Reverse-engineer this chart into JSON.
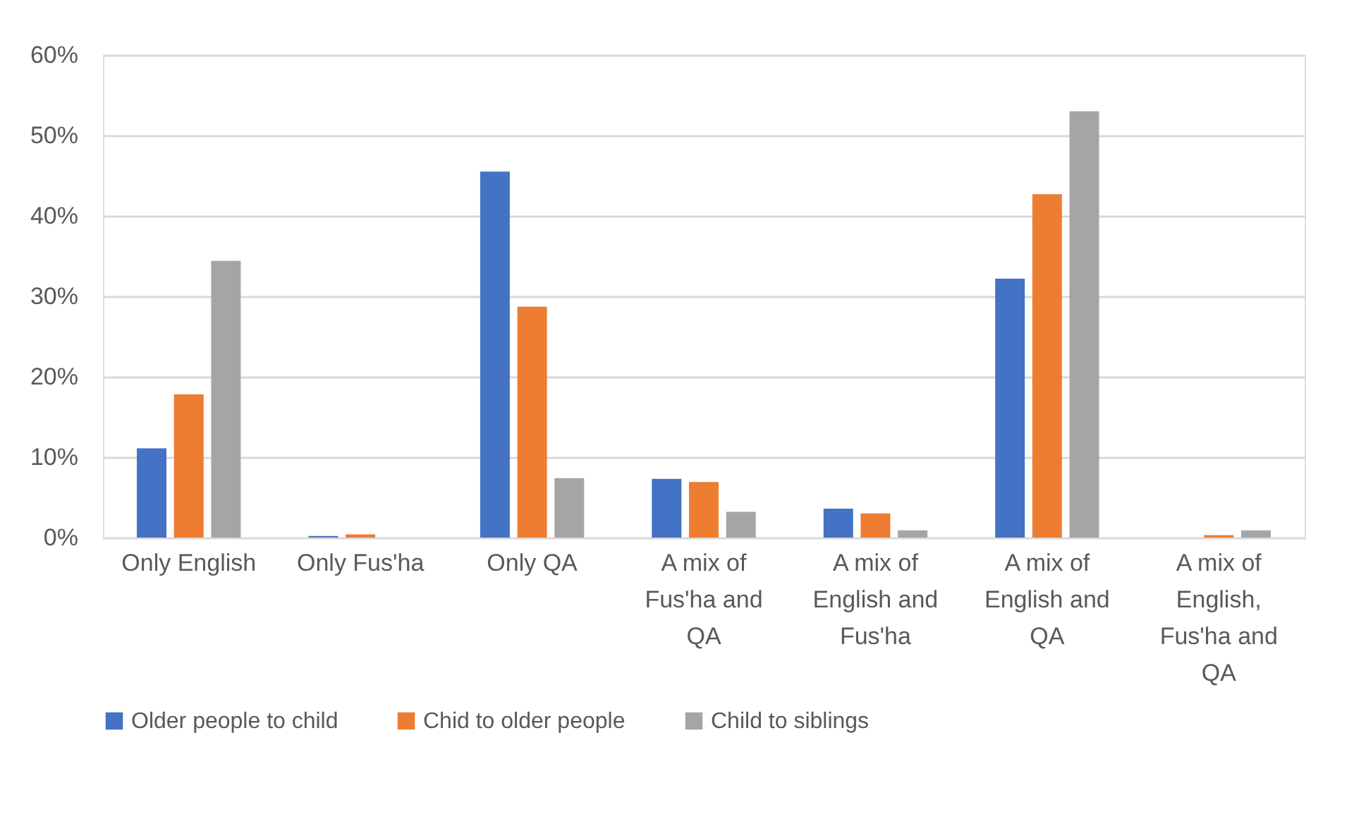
{
  "chart_data": {
    "type": "bar",
    "categories": [
      "Only English",
      "Only Fus'ha",
      "Only QA",
      "A mix of Fus'ha and QA",
      "A mix of English and Fus'ha",
      "A mix of English and QA",
      "A mix of English, Fus'ha and QA"
    ],
    "series": [
      {
        "name": "Older people to child",
        "color": "#4472c4",
        "values": [
          11.1,
          0.2,
          45.5,
          7.3,
          3.6,
          32.2,
          0
        ]
      },
      {
        "name": "Chid to older people",
        "color": "#ed7d31",
        "values": [
          17.8,
          0.4,
          28.7,
          6.9,
          3.0,
          42.7,
          0.3
        ]
      },
      {
        "name": "Child to siblings",
        "color": "#a5a5a5",
        "values": [
          34.4,
          0,
          7.4,
          3.2,
          0.9,
          53.0,
          0.9
        ]
      }
    ],
    "ylim": [
      0,
      60
    ],
    "yticks": [
      {
        "value": 0,
        "label": "0%"
      },
      {
        "value": 10,
        "label": "10%"
      },
      {
        "value": 20,
        "label": "20%"
      },
      {
        "value": 30,
        "label": "30%"
      },
      {
        "value": 40,
        "label": "40%"
      },
      {
        "value": 50,
        "label": "50%"
      },
      {
        "value": 60,
        "label": "60%"
      }
    ],
    "grid": "y",
    "legend": "bottom"
  }
}
